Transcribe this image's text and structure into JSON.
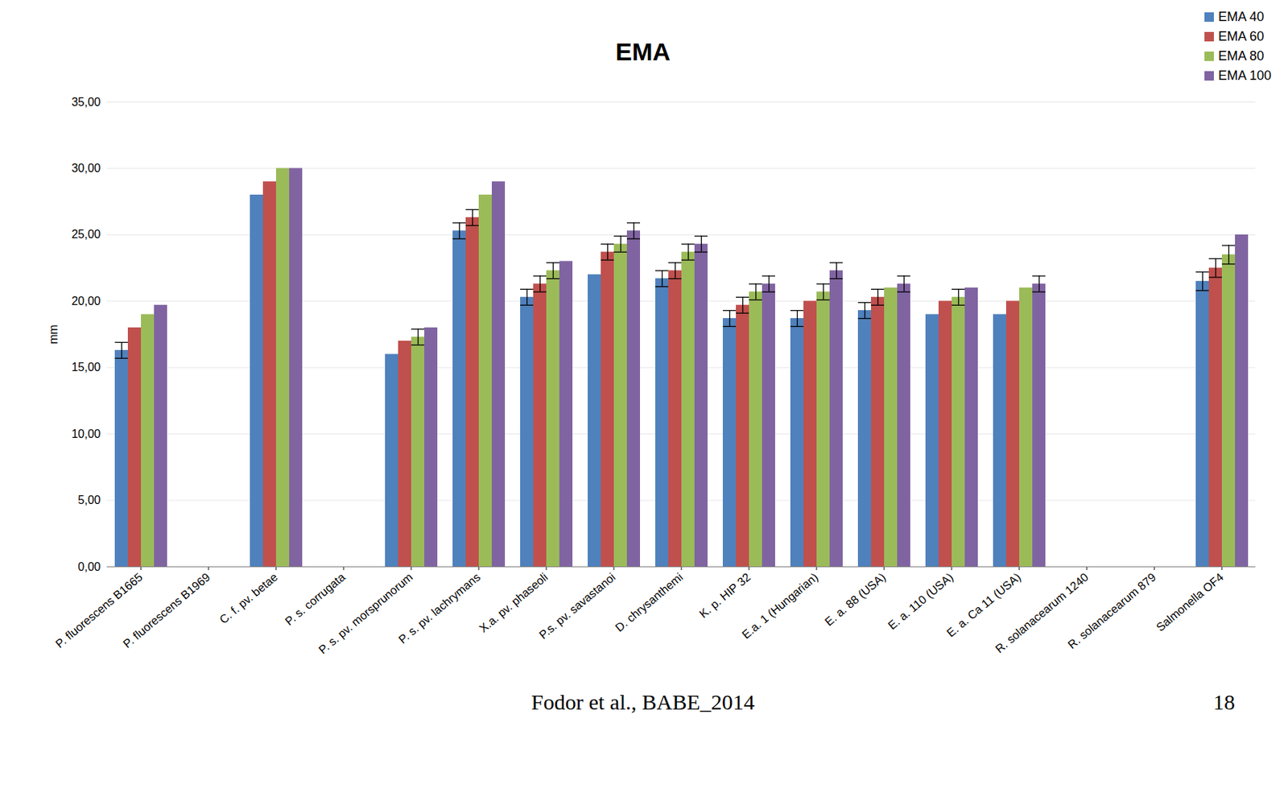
{
  "chart_data": {
    "type": "bar",
    "title": "EMA",
    "caption": "Fodor et al., BABE_2014",
    "page_number": "18",
    "y_label": "mm",
    "categories": [
      "P. fluorescens B1665",
      "P. fluorescens B1969",
      "C. f. pv. betae",
      "P. s. corrugata",
      "P. s. pv. morsprunorum",
      "P. s. pv. lachrymans",
      "X.a. pv. phaseoli",
      "P.s. pv. savastanoi",
      "D. chrysanthemi",
      "K. p. HIP 32",
      "E.a. 1 (Hungarian)",
      "E. a. 88 (USA)",
      "E. a. 110 (USA)",
      "E. a. Ca 11 (USA)",
      "R. solanacearum 1240",
      "R. solanacearum 879",
      "Salmonella OF4"
    ],
    "series": [
      {
        "name": "EMA 40",
        "color": "#4f81bd",
        "values": [
          16.3,
          0,
          28.0,
          0,
          16.0,
          25.3,
          20.3,
          22.0,
          21.7,
          18.7,
          18.7,
          19.3,
          19.0,
          19.0,
          0,
          0,
          21.5
        ],
        "errors": [
          0.6,
          0,
          0,
          0,
          0,
          0.6,
          0.6,
          0,
          0.6,
          0.6,
          0.6,
          0.6,
          0,
          0,
          0,
          0,
          0.7
        ]
      },
      {
        "name": "EMA 60",
        "color": "#c0504d",
        "values": [
          18.0,
          0,
          29.0,
          0,
          17.0,
          26.3,
          21.3,
          23.7,
          22.3,
          19.7,
          20.0,
          20.3,
          20.0,
          20.0,
          0,
          0,
          22.5
        ],
        "errors": [
          0,
          0,
          0,
          0,
          0,
          0.6,
          0.6,
          0.6,
          0.6,
          0.6,
          0,
          0.6,
          0,
          0,
          0,
          0,
          0.7
        ]
      },
      {
        "name": "EMA 80",
        "color": "#9bbb59",
        "values": [
          19.0,
          0,
          30.0,
          0,
          17.3,
          28.0,
          22.3,
          24.3,
          23.7,
          20.7,
          20.7,
          21.0,
          20.3,
          21.0,
          0,
          0,
          23.5
        ],
        "errors": [
          0,
          0,
          0,
          0,
          0.6,
          0,
          0.6,
          0.6,
          0.6,
          0.6,
          0.6,
          0,
          0.6,
          0,
          0,
          0,
          0.7
        ]
      },
      {
        "name": "EMA 100",
        "color": "#8064a2",
        "values": [
          19.7,
          0,
          30.0,
          0,
          18.0,
          29.0,
          23.0,
          25.3,
          24.3,
          21.3,
          22.3,
          21.3,
          21.0,
          21.3,
          0,
          0,
          25.0
        ],
        "errors": [
          0,
          0,
          0,
          0,
          0,
          0,
          0,
          0.6,
          0.6,
          0.6,
          0.6,
          0.6,
          0,
          0.6,
          0,
          0,
          0
        ]
      }
    ],
    "ylim": [
      0,
      35
    ],
    "yticks": [
      {
        "value": 0,
        "label": "0,00"
      },
      {
        "value": 5,
        "label": "5,00"
      },
      {
        "value": 10,
        "label": "10,00"
      },
      {
        "value": 15,
        "label": "15,00"
      },
      {
        "value": 20,
        "label": "20,00"
      },
      {
        "value": 25,
        "label": "25,00"
      },
      {
        "value": 30,
        "label": "30,00"
      },
      {
        "value": 35,
        "label": "35,00"
      }
    ],
    "grid": true,
    "legend": "top-right"
  }
}
